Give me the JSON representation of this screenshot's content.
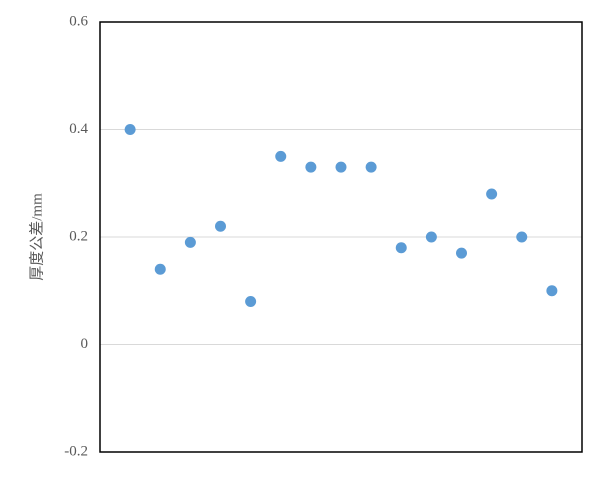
{
  "chart_data": {
    "type": "scatter",
    "y_label": "厚度公差/mm",
    "x": [
      1,
      2,
      3,
      4,
      5,
      6,
      7,
      8,
      9,
      10,
      11,
      12,
      13,
      14,
      15
    ],
    "values": [
      0.4,
      0.14,
      0.19,
      0.22,
      0.08,
      0.35,
      0.33,
      0.33,
      0.33,
      0.18,
      0.2,
      0.17,
      0.28,
      0.2,
      0.1
    ],
    "color": "#5b9bd5",
    "xlim": [
      0,
      16
    ],
    "ylim": [
      -0.2,
      0.6
    ],
    "yticks": [
      0.6,
      0.4,
      0.2,
      0,
      -0.2
    ],
    "grid": true
  }
}
